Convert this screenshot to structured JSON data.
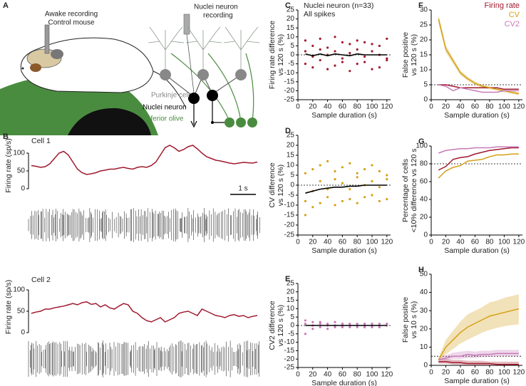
{
  "panel_a": {
    "letter": "A",
    "mouse_title": [
      "Awake recording",
      "Control mouse"
    ],
    "circuit_title": [
      "Nuclei neuron",
      "recording"
    ],
    "purkinje": "Purkinje cell",
    "nuclei": "Nuclei neuron",
    "olive": "Inferior olive"
  },
  "chart_data": [
    {
      "type": "line",
      "panel": "B",
      "label": "Cell 1",
      "ylabel": [
        "Firing rate (sp/s)"
      ],
      "scalebar_label": "1 s",
      "ylim": [
        0,
        130
      ],
      "yticks": [
        0,
        50,
        100
      ],
      "series": [
        {
          "color": "#a0192e",
          "values": [
            65,
            63,
            60,
            62,
            70,
            85,
            100,
            105,
            95,
            75,
            55,
            45,
            40,
            42,
            45,
            50,
            52,
            55,
            55,
            58,
            60,
            57,
            55,
            60,
            62,
            60,
            65,
            75,
            95,
            115,
            122,
            115,
            105,
            110,
            118,
            122,
            112,
            100,
            90,
            85,
            80,
            78,
            75,
            72,
            70,
            72,
            74,
            73,
            72,
            75
          ]
        }
      ]
    },
    {
      "type": "line",
      "label": "Cell 2",
      "ylabel": [
        "Firing rate (sp/s)"
      ],
      "ylim": [
        0,
        120
      ],
      "yticks": [
        0,
        50,
        100
      ],
      "series": [
        {
          "color": "#a0192e",
          "values": [
            45,
            48,
            50,
            55,
            55,
            58,
            60,
            62,
            65,
            68,
            65,
            70,
            72,
            66,
            68,
            60,
            65,
            58,
            55,
            62,
            68,
            65,
            50,
            45,
            35,
            28,
            25,
            30,
            35,
            25,
            30,
            35,
            45,
            48,
            50,
            45,
            40,
            55,
            50,
            45,
            40,
            38,
            35,
            40,
            42,
            38,
            40,
            35,
            38,
            40
          ]
        }
      ]
    },
    {
      "type": "scatter",
      "panel": "C",
      "annotation": [
        "Nuclei neuron (n=33)",
        "All spikes"
      ],
      "ylabel": [
        "Firing rate difference",
        "vs 120 s (%)"
      ],
      "xlabel": "Sample duration (s)",
      "xlim": [
        0,
        125
      ],
      "xticks": [
        0,
        20,
        40,
        60,
        80,
        100,
        120
      ],
      "ylim": [
        -25,
        25
      ],
      "yticks": [
        -25,
        -20,
        -15,
        -10,
        -5,
        0,
        5,
        10,
        15,
        20,
        25
      ],
      "refline": 0,
      "series": [
        {
          "color": "#a0192e",
          "x": [
            10,
            10,
            10,
            20,
            20,
            20,
            30,
            30,
            30,
            40,
            40,
            40,
            50,
            50,
            50,
            60,
            60,
            60,
            70,
            70,
            70,
            80,
            80,
            80,
            90,
            90,
            90,
            100,
            100,
            100,
            110,
            110,
            110,
            120,
            120,
            120
          ],
          "values": [
            8,
            -5,
            2,
            -7,
            5,
            -1,
            9,
            -3,
            3,
            -8,
            4,
            0,
            10,
            -6,
            2,
            -4,
            7,
            -2,
            6,
            -9,
            1,
            -5,
            8,
            3,
            7,
            -4,
            -1,
            -8,
            6,
            2,
            5,
            -7,
            0,
            -3,
            9,
            -2
          ]
        },
        {
          "color": "#000000",
          "line": true,
          "x": [
            10,
            20,
            30,
            40,
            50,
            60,
            70,
            80,
            90,
            100,
            110,
            120
          ],
          "values": [
            0.5,
            -0.5,
            0.5,
            -0.5,
            0.5,
            0,
            -0.5,
            0.5,
            0,
            0,
            0,
            0
          ]
        }
      ]
    },
    {
      "type": "scatter",
      "panel": "D",
      "ylabel": [
        "CV difference",
        "vs 120 s (%)"
      ],
      "xlabel": "Sample duration (s)",
      "xlim": [
        0,
        125
      ],
      "xticks": [
        0,
        20,
        40,
        60,
        80,
        100,
        120
      ],
      "ylim": [
        -25,
        25
      ],
      "yticks": [
        -25,
        -20,
        -15,
        -10,
        -5,
        0,
        5,
        10,
        15,
        20,
        25
      ],
      "refline": 0,
      "series": [
        {
          "color": "#d4a017",
          "x": [
            10,
            10,
            10,
            20,
            20,
            20,
            30,
            30,
            30,
            40,
            40,
            40,
            50,
            50,
            50,
            60,
            60,
            60,
            70,
            70,
            70,
            80,
            80,
            80,
            90,
            90,
            90,
            100,
            100,
            100,
            110,
            110,
            110,
            120,
            120,
            120
          ],
          "values": [
            -15,
            6,
            -8,
            8,
            -11,
            -3,
            -9,
            10,
            2,
            12,
            -6,
            -2,
            -10,
            7,
            3,
            9,
            -8,
            1,
            -7,
            11,
            -2,
            6,
            -9,
            4,
            -6,
            8,
            0,
            10,
            -5,
            2,
            -8,
            7,
            -1,
            5,
            -7,
            3
          ]
        },
        {
          "color": "#000000",
          "line": true,
          "x": [
            10,
            20,
            30,
            40,
            50,
            60,
            70,
            80,
            90,
            100,
            110,
            120
          ],
          "values": [
            -4,
            -3,
            -2,
            -1.5,
            -1,
            -1,
            -0.5,
            -0.5,
            0,
            0,
            0,
            0
          ]
        }
      ]
    },
    {
      "type": "scatter",
      "panel": "E",
      "ylabel": [
        "CV2 difference",
        "vs 120 s (%)"
      ],
      "xlabel": "Sample duration (s)",
      "xlim": [
        0,
        125
      ],
      "xticks": [
        0,
        20,
        40,
        60,
        80,
        100,
        120
      ],
      "ylim": [
        -25,
        25
      ],
      "yticks": [
        -25,
        -20,
        -15,
        -10,
        -5,
        0,
        5,
        10,
        15,
        20,
        25
      ],
      "refline": 0,
      "series": [
        {
          "color": "#c879b8",
          "x": [
            10,
            10,
            10,
            20,
            20,
            20,
            30,
            30,
            30,
            40,
            40,
            40,
            50,
            50,
            50,
            60,
            60,
            60,
            70,
            70,
            70,
            80,
            80,
            80,
            90,
            90,
            90,
            100,
            100,
            100,
            110,
            110,
            110,
            120,
            120,
            120
          ],
          "values": [
            -5,
            3,
            1,
            2,
            -2,
            0,
            -1,
            2,
            1,
            1,
            -2,
            0,
            2,
            -1,
            0,
            -1,
            1,
            0,
            1,
            -1,
            0,
            0,
            1,
            -1,
            1,
            0,
            -1,
            0,
            1,
            -1,
            1,
            -1,
            0,
            0,
            0,
            1
          ]
        },
        {
          "color": "#000000",
          "line": true,
          "x": [
            10,
            20,
            30,
            40,
            50,
            60,
            70,
            80,
            90,
            100,
            110,
            120
          ],
          "values": [
            0,
            0,
            0,
            0,
            0,
            0,
            0,
            0,
            0,
            0,
            0,
            0
          ]
        }
      ]
    },
    {
      "type": "line",
      "panel": "F",
      "ylabel": [
        "False positive",
        "vs 120 s (%)"
      ],
      "xlabel": "Sample duration (s)",
      "xlim": [
        0,
        125
      ],
      "xticks": [
        0,
        20,
        40,
        60,
        80,
        100,
        120
      ],
      "ylim": [
        0,
        30
      ],
      "yticks": [
        0,
        5,
        10,
        15,
        20,
        25,
        30
      ],
      "refline": 5,
      "series": [
        {
          "name": "Firing rate",
          "color": "#a0192e",
          "x": [
            10,
            20,
            30,
            40,
            50,
            60,
            70,
            80,
            90,
            100,
            110,
            120
          ],
          "values": [
            5,
            5,
            4.5,
            4,
            4,
            4,
            4,
            4,
            4,
            3.5,
            3.5,
            3.5
          ]
        },
        {
          "name": "CV",
          "color": "#d4a017",
          "x": [
            10,
            20,
            30,
            40,
            50,
            60,
            70,
            80,
            90,
            100,
            110,
            120
          ],
          "values": [
            27,
            17,
            13,
            9,
            7,
            5.5,
            4.5,
            4,
            3.5,
            3,
            2.5,
            2
          ],
          "lower": [
            25.5,
            15.8,
            12,
            8.2,
            6.3,
            4.9,
            4,
            3.5,
            3,
            2.5,
            2,
            1.5
          ],
          "upper": [
            28.5,
            18.2,
            14,
            9.8,
            7.7,
            6.1,
            5,
            4.5,
            4,
            3.5,
            3,
            2.5
          ]
        },
        {
          "name": "CV2",
          "color": "#c879b8",
          "x": [
            10,
            20,
            30,
            40,
            50,
            60,
            70,
            80,
            90,
            100,
            110,
            120
          ],
          "values": [
            5,
            4.5,
            3,
            4,
            3.5,
            3,
            2.5,
            2.5,
            2.5,
            3,
            3,
            3
          ]
        }
      ]
    },
    {
      "type": "line",
      "panel": "G",
      "ylabel": [
        "Percentage of cells",
        "<10% difference vs 120 s"
      ],
      "xlabel": "Sample duration (s)",
      "xlim": [
        0,
        125
      ],
      "xticks": [
        0,
        20,
        40,
        60,
        80,
        100,
        120
      ],
      "ylim": [
        0,
        100
      ],
      "yticks": [
        0,
        20,
        40,
        60,
        80,
        100
      ],
      "refline": 80,
      "series": [
        {
          "color": "#a0192e",
          "x": [
            10,
            20,
            30,
            40,
            50,
            60,
            70,
            80,
            90,
            100,
            110,
            120
          ],
          "values": [
            73,
            77,
            85,
            87,
            88,
            91,
            93,
            95,
            96,
            97,
            98,
            98
          ]
        },
        {
          "color": "#d4a017",
          "x": [
            10,
            20,
            30,
            40,
            50,
            60,
            70,
            80,
            90,
            100,
            110,
            120
          ],
          "values": [
            64,
            72,
            76,
            78,
            83,
            84,
            85,
            88,
            90,
            90,
            91,
            91
          ]
        },
        {
          "color": "#c879b8",
          "x": [
            10,
            20,
            30,
            40,
            50,
            60,
            70,
            80,
            90,
            100,
            110,
            120
          ],
          "values": [
            92,
            95,
            96,
            97,
            97,
            98,
            98,
            98,
            99,
            99,
            99,
            99
          ]
        }
      ]
    },
    {
      "type": "line",
      "panel": "H",
      "ylabel": [
        "False positive",
        "vs 10 s (%)"
      ],
      "xlabel": "Sample duration (s)",
      "xlim": [
        0,
        125
      ],
      "xticks": [
        0,
        20,
        40,
        60,
        80,
        100,
        120
      ],
      "ylim": [
        0,
        50
      ],
      "yticks": [
        0,
        10,
        20,
        30,
        40,
        50
      ],
      "refline": 5,
      "series": [
        {
          "color": "#a0192e",
          "x": [
            10,
            20,
            30,
            40,
            50,
            60,
            70,
            80,
            90,
            100,
            110,
            120
          ],
          "values": [
            2,
            2,
            1.5,
            1.5,
            1,
            1,
            1,
            1,
            0.5,
            0.5,
            0.5,
            0.5
          ],
          "lower": [
            1,
            1,
            0.5,
            0.5,
            0,
            0,
            0,
            0,
            0,
            0,
            0,
            0
          ],
          "upper": [
            3,
            3.5,
            3,
            3,
            2.5,
            2.5,
            2.5,
            2,
            2,
            2,
            2,
            2
          ]
        },
        {
          "color": "#d4a017",
          "x": [
            10,
            20,
            30,
            40,
            50,
            60,
            70,
            80,
            90,
            100,
            110,
            120
          ],
          "values": [
            3,
            10,
            14,
            18,
            21,
            23,
            25,
            27,
            28,
            29,
            30,
            31
          ],
          "lower": [
            2,
            6,
            9,
            12,
            14,
            16,
            18,
            19.5,
            20.5,
            21.5,
            22,
            22.5
          ],
          "upper": [
            4,
            14,
            19,
            24,
            28,
            30,
            32,
            34.5,
            35.5,
            37,
            38,
            39
          ]
        },
        {
          "color": "#c879b8",
          "x": [
            10,
            20,
            30,
            40,
            50,
            60,
            70,
            80,
            90,
            100,
            110,
            120
          ],
          "values": [
            3,
            4,
            5,
            5,
            6,
            5.5,
            6,
            6,
            6.5,
            6.5,
            6.5,
            6.5
          ],
          "lower": [
            3,
            3,
            3.5,
            3.5,
            4,
            4,
            4.5,
            4.5,
            5,
            5,
            5,
            5
          ],
          "upper": [
            4,
            5.5,
            7,
            7.5,
            8,
            7.5,
            8,
            8,
            8.5,
            8.5,
            8.5,
            8.5
          ]
        }
      ]
    }
  ]
}
